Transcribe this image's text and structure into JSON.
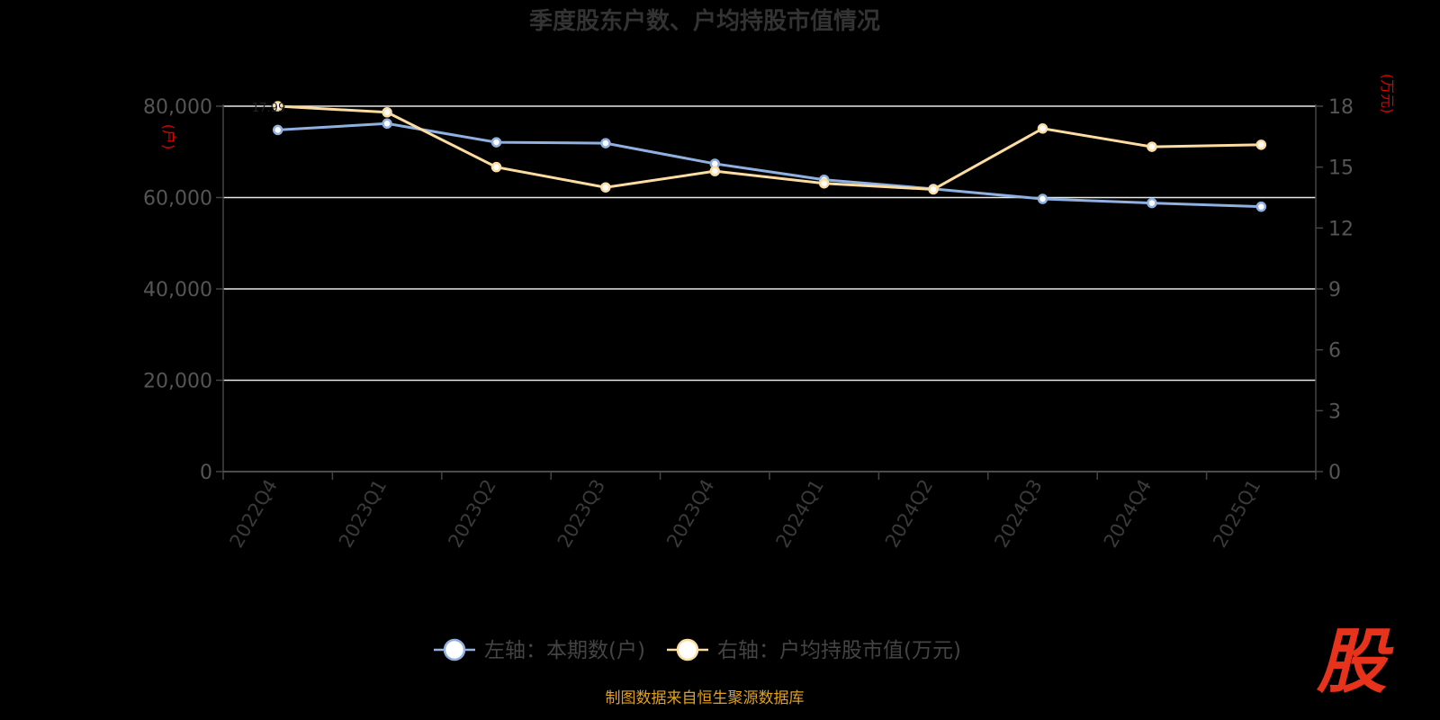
{
  "chart_data": {
    "type": "line",
    "title": "季度股东户数、户均持股市值情况",
    "categories": [
      "2022Q4",
      "2023Q1",
      "2023Q2",
      "2023Q3",
      "2023Q4",
      "2024Q1",
      "2024Q2",
      "2024Q3",
      "2024Q4",
      "2025Q1"
    ],
    "y_left": {
      "unit": "(户)",
      "ylim": [
        0,
        80000
      ],
      "ticks": [
        "0",
        "20,000",
        "40,000",
        "60,000",
        "80,000"
      ],
      "tick_values": [
        0,
        20000,
        40000,
        60000,
        80000
      ]
    },
    "y_right": {
      "unit": "(万元)",
      "ylim": [
        0,
        18
      ],
      "ticks": [
        "0",
        "3",
        "6",
        "9",
        "12",
        "15",
        "18"
      ],
      "tick_values": [
        0,
        3,
        6,
        9,
        12,
        15,
        18
      ]
    },
    "series": [
      {
        "name": "左轴：本期数(户)",
        "axis": "left",
        "color": "#8fb0e0",
        "values": [
          74800,
          76200,
          72100,
          71900,
          67400,
          63900,
          61900,
          59700,
          58800,
          58000
        ]
      },
      {
        "name": "右轴：户均持股市值(万元)",
        "axis": "right",
        "color": "#fddca2",
        "values": [
          18.0,
          17.7,
          15.0,
          14.0,
          14.8,
          14.2,
          13.9,
          16.9,
          16.0,
          16.1
        ]
      }
    ],
    "grid": true,
    "legend_position": "bottom",
    "first_point_label": "17.99"
  },
  "source": "制图数据来自恒生聚源数据库",
  "logo": "股"
}
